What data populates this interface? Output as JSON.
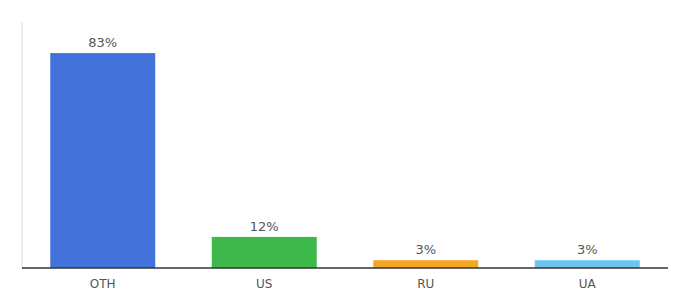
{
  "chart_data": {
    "type": "bar",
    "categories": [
      "OTH",
      "US",
      "RU",
      "UA"
    ],
    "values": [
      83,
      12,
      3,
      3
    ],
    "value_labels": [
      "83%",
      "12%",
      "3%",
      "3%"
    ],
    "colors": [
      "#4472db",
      "#3db84a",
      "#f5a623",
      "#6ec6f0"
    ],
    "ylim": [
      0,
      95
    ],
    "data_labels": true,
    "tick_labels": "x",
    "grid": false
  }
}
